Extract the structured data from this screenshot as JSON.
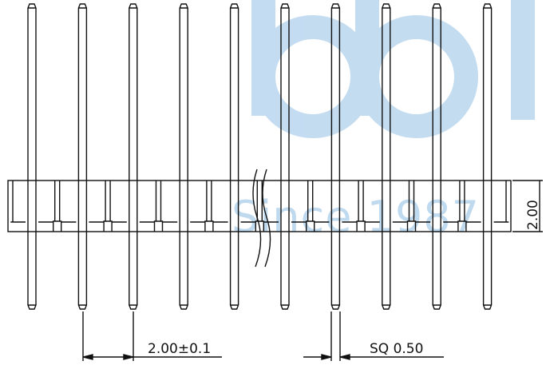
{
  "watermark": {
    "text": "Since 1987"
  },
  "dimensions": {
    "pitch": "2.00±0.1",
    "pin_size": "SQ 0.50",
    "height": "2.00"
  }
}
